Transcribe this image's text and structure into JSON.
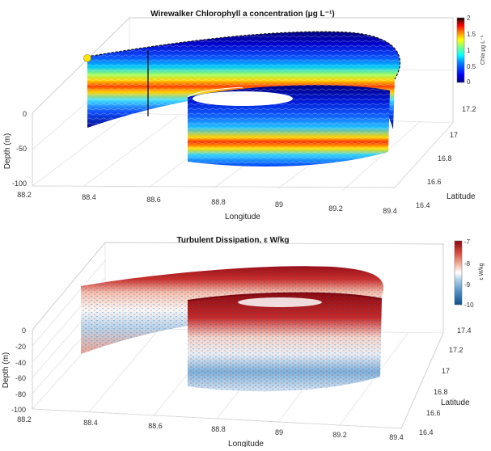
{
  "chart_data": [
    {
      "type": "heatmap",
      "title": "Wirewalker Chlorophyll a concentration (μg L⁻¹)",
      "xlabel": "Longitude",
      "ylabel": "Latitude",
      "zlabel": "Depth (m)",
      "x_ticks": [
        "88.2",
        "88.4",
        "88.6",
        "88.8",
        "89",
        "89.2",
        "89.4"
      ],
      "y_ticks": [
        "16.4",
        "16.6",
        "16.8",
        "17",
        "17.2"
      ],
      "z_ticks": [
        "0",
        "-50",
        "-100"
      ],
      "xlim": [
        88.2,
        89.4
      ],
      "ylim": [
        16.4,
        17.2
      ],
      "zlim": [
        -100,
        0
      ],
      "colorbar": {
        "label": "Chla μg L⁻¹",
        "ticks": [
          "2",
          "1.5",
          "1",
          "0.5",
          "0"
        ],
        "range": [
          0,
          2
        ],
        "colormap": "jet"
      }
    },
    {
      "type": "heatmap",
      "title": "Turbulent Dissipation, ε W/kg",
      "xlabel": "Longitude",
      "ylabel": "Latitude",
      "zlabel": "Depth (m)",
      "x_ticks": [
        "88.2",
        "88.4",
        "88.6",
        "88.8",
        "89",
        "89.2",
        "89.4"
      ],
      "y_ticks": [
        "16.4",
        "16.6",
        "16.8",
        "17",
        "17.2",
        "17.4"
      ],
      "z_ticks": [
        "0",
        "-20",
        "-40",
        "-60",
        "-80",
        "-100"
      ],
      "xlim": [
        88.2,
        89.4
      ],
      "ylim": [
        16.4,
        17.4
      ],
      "zlim": [
        -100,
        0
      ],
      "colorbar": {
        "label": "ε W/kg",
        "ticks": [
          "-7",
          "-8",
          "-9",
          "-10"
        ],
        "range": [
          -10,
          -7
        ],
        "colormap": "blue-white-red",
        "scale": "log10"
      }
    }
  ],
  "colors": {
    "jet": [
      "#00007f",
      "#0000ff",
      "#0080ff",
      "#00ffff",
      "#80ff80",
      "#ffff00",
      "#ff8000",
      "#ff0000",
      "#7f0000",
      "#000000"
    ],
    "diverging": [
      "#0b4f8a",
      "#4f8fc4",
      "#a8cce4",
      "#ffffff",
      "#f2b09a",
      "#d6453a",
      "#8a0a12"
    ],
    "start_marker": "#ffe600"
  }
}
